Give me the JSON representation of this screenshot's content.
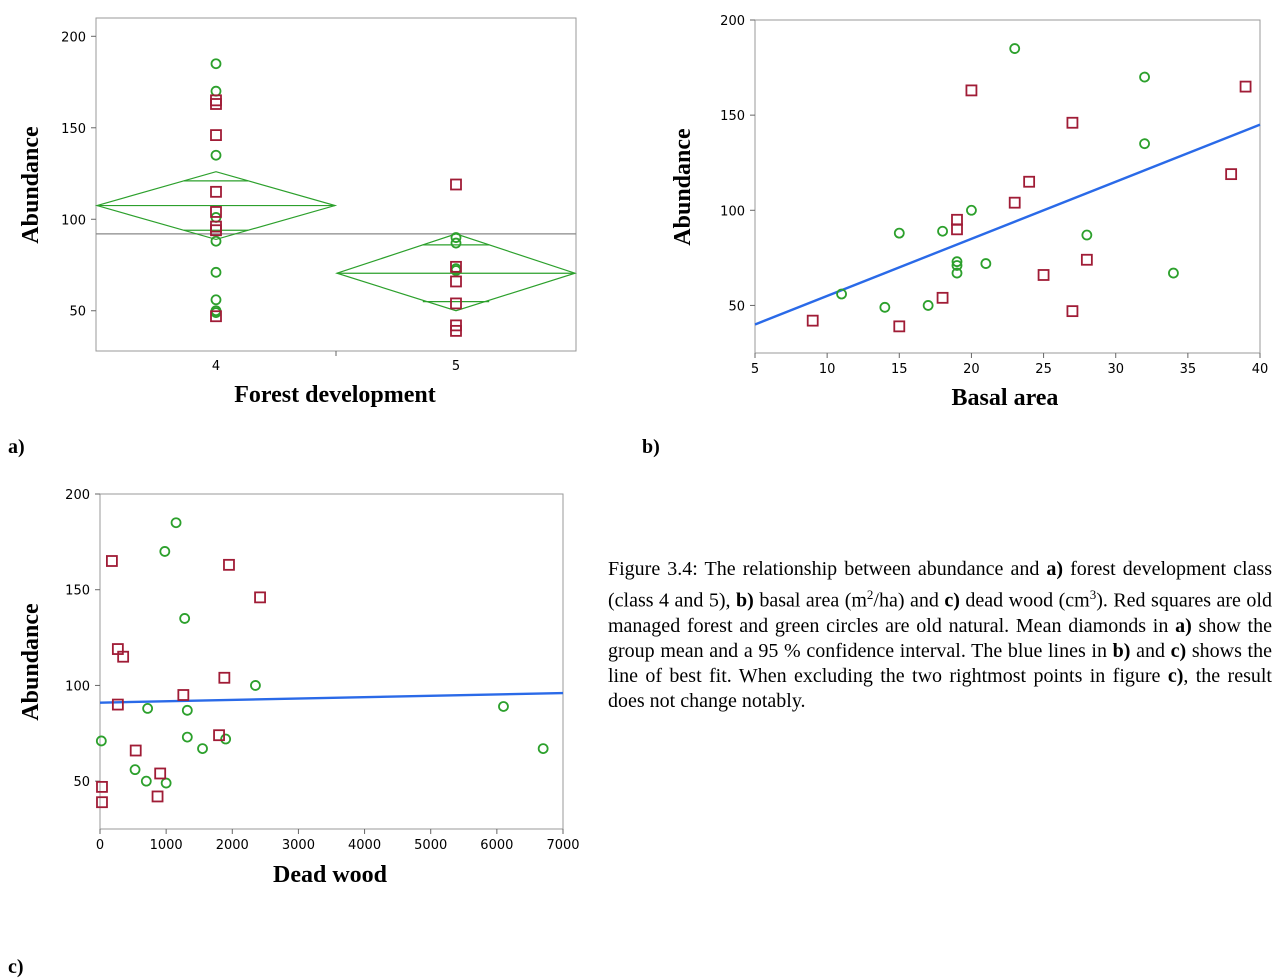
{
  "colors": {
    "green": "#2ca02c",
    "red": "#a01c36",
    "blue": "#2a6ae8",
    "grand_mean_line": "#888888",
    "frame": "#999999"
  },
  "chart_data": [
    {
      "id": "a",
      "panel_label": "a)",
      "type": "scatter",
      "xlabel": "Forest development",
      "ylabel": "Abundance",
      "categories": [
        "4",
        "5"
      ],
      "ylim": [
        28,
        210
      ],
      "yticks": [
        50,
        100,
        150,
        200
      ],
      "grand_mean": 92,
      "series": [
        {
          "marker": "circle",
          "color": "green",
          "points": [
            [
              "4",
              185
            ],
            [
              "4",
              170
            ],
            [
              "4",
              135
            ],
            [
              "4",
              101
            ],
            [
              "4",
              88
            ],
            [
              "4",
              71
            ],
            [
              "4",
              56
            ],
            [
              "4",
              50
            ],
            [
              "4",
              49
            ],
            [
              "5",
              90
            ],
            [
              "5",
              87
            ],
            [
              "5",
              73
            ],
            [
              "5",
              72
            ]
          ]
        },
        {
          "marker": "square",
          "color": "red",
          "points": [
            [
              "4",
              165
            ],
            [
              "4",
              163
            ],
            [
              "4",
              146
            ],
            [
              "4",
              115
            ],
            [
              "4",
              104
            ],
            [
              "4",
              96
            ],
            [
              "4",
              94
            ],
            [
              "4",
              47
            ],
            [
              "5",
              119
            ],
            [
              "5",
              74
            ],
            [
              "5",
              66
            ],
            [
              "5",
              54
            ],
            [
              "5",
              42
            ],
            [
              "5",
              39
            ]
          ]
        }
      ],
      "mean_diamonds": [
        {
          "category": "4",
          "mean": 107.5,
          "ci": [
            89,
            126
          ],
          "overlap_marks": [
            94,
            121
          ]
        },
        {
          "category": "5",
          "mean": 70.5,
          "ci": [
            50,
            92
          ],
          "overlap_marks": [
            55,
            86
          ]
        }
      ]
    },
    {
      "id": "b",
      "panel_label": "b)",
      "type": "scatter",
      "xlabel": "Basal area",
      "ylabel": "Abundance",
      "xlim": [
        5,
        40
      ],
      "ylim": [
        25,
        200
      ],
      "xticks": [
        5,
        10,
        15,
        20,
        25,
        30,
        35,
        40
      ],
      "yticks": [
        50,
        100,
        150,
        200
      ],
      "fit_line": [
        [
          5,
          40
        ],
        [
          40,
          145
        ]
      ],
      "series": [
        {
          "marker": "circle",
          "color": "green",
          "points": [
            [
              23,
              185
            ],
            [
              32,
              170
            ],
            [
              32,
              135
            ],
            [
              20,
              100
            ],
            [
              15,
              88
            ],
            [
              18,
              89
            ],
            [
              28,
              87
            ],
            [
              19,
              73
            ],
            [
              19,
              71
            ],
            [
              21,
              72
            ],
            [
              19,
              67
            ],
            [
              34,
              67
            ],
            [
              11,
              56
            ],
            [
              14,
              49
            ],
            [
              17,
              50
            ]
          ]
        },
        {
          "marker": "square",
          "color": "red",
          "points": [
            [
              20,
              163
            ],
            [
              39,
              165
            ],
            [
              27,
              146
            ],
            [
              38,
              119
            ],
            [
              24,
              115
            ],
            [
              23,
              104
            ],
            [
              19,
              95
            ],
            [
              19,
              90
            ],
            [
              28,
              74
            ],
            [
              25,
              66
            ],
            [
              18,
              54
            ],
            [
              27,
              47
            ],
            [
              9,
              42
            ],
            [
              15,
              39
            ]
          ]
        }
      ]
    },
    {
      "id": "c",
      "panel_label": "c)",
      "type": "scatter",
      "xlabel": "Dead wood",
      "ylabel": "Abundance",
      "xlim": [
        0,
        7000
      ],
      "ylim": [
        25,
        200
      ],
      "xticks": [
        0,
        1000,
        2000,
        3000,
        4000,
        5000,
        6000,
        7000
      ],
      "yticks": [
        50,
        100,
        150,
        200
      ],
      "fit_line": [
        [
          0,
          91
        ],
        [
          7000,
          96
        ]
      ],
      "series": [
        {
          "marker": "circle",
          "color": "green",
          "points": [
            [
              1150,
              185
            ],
            [
              980,
              170
            ],
            [
              1280,
              135
            ],
            [
              2350,
              100
            ],
            [
              720,
              88
            ],
            [
              1320,
              87
            ],
            [
              6100,
              89
            ],
            [
              20,
              71
            ],
            [
              1320,
              73
            ],
            [
              1900,
              72
            ],
            [
              1550,
              67
            ],
            [
              6700,
              67
            ],
            [
              530,
              56
            ],
            [
              700,
              50
            ],
            [
              1000,
              49
            ]
          ]
        },
        {
          "marker": "square",
          "color": "red",
          "points": [
            [
              180,
              165
            ],
            [
              1950,
              163
            ],
            [
              2420,
              146
            ],
            [
              270,
              119
            ],
            [
              350,
              115
            ],
            [
              1880,
              104
            ],
            [
              1260,
              95
            ],
            [
              270,
              90
            ],
            [
              1800,
              74
            ],
            [
              540,
              66
            ],
            [
              910,
              54
            ],
            [
              870,
              42
            ],
            [
              30,
              47
            ],
            [
              30,
              39
            ]
          ]
        }
      ]
    }
  ],
  "caption": {
    "prefix": "Figure 3.4: The relationship between abundance and ",
    "a": "a)",
    "t1": " forest development class (class 4 and 5), ",
    "b": "b)",
    "t2": " basal area (m",
    "sup2": "2",
    "t3": "/ha) and ",
    "c": "c)",
    "t4": " dead wood (cm",
    "sup3": "3",
    "t5": "). Red squares are old managed forest and green circles are old natural. Mean diamonds in ",
    "a2": "a)",
    "t6": " show the group mean and a 95 % confidence interval. The blue lines in ",
    "b2": "b)",
    "t7": " and ",
    "c2": "c)",
    "t8": " shows the line of best fit. When excluding the two rightmost points in figure ",
    "c3": "c)",
    "t9": ", the result does not change notably."
  }
}
